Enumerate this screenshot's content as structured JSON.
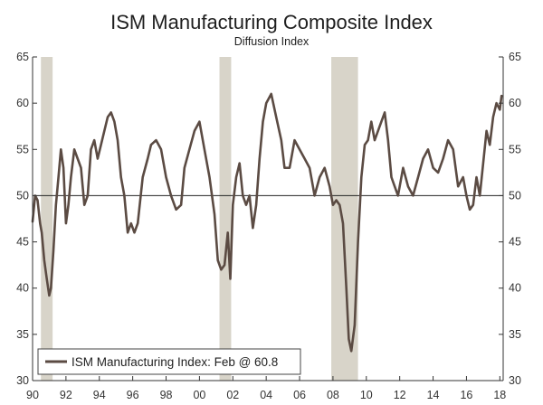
{
  "chart_data": {
    "type": "line",
    "title": "ISM Manufacturing Composite Index",
    "subtitle": "Diffusion Index",
    "xlabel": "",
    "ylabel": "",
    "ylim": [
      30,
      65
    ],
    "y_ticks": [
      30,
      35,
      40,
      45,
      50,
      55,
      60,
      65
    ],
    "x_range": [
      1990,
      2018.2
    ],
    "x_ticks": [
      {
        "value": 1990,
        "label": "90"
      },
      {
        "value": 1992,
        "label": "92"
      },
      {
        "value": 1994,
        "label": "94"
      },
      {
        "value": 1996,
        "label": "96"
      },
      {
        "value": 1998,
        "label": "98"
      },
      {
        "value": 2000,
        "label": "00"
      },
      {
        "value": 2002,
        "label": "02"
      },
      {
        "value": 2004,
        "label": "04"
      },
      {
        "value": 2006,
        "label": "06"
      },
      {
        "value": 2008,
        "label": "08"
      },
      {
        "value": 2010,
        "label": "10"
      },
      {
        "value": 2012,
        "label": "12"
      },
      {
        "value": 2014,
        "label": "14"
      },
      {
        "value": 2016,
        "label": "16"
      },
      {
        "value": 2018,
        "label": "18"
      }
    ],
    "reference_line": 50,
    "recessions": [
      {
        "start": 1990.5,
        "end": 1991.2
      },
      {
        "start": 2001.2,
        "end": 2001.9
      },
      {
        "start": 2007.9,
        "end": 2009.5
      }
    ],
    "legend": {
      "label": "ISM Manufacturing Index: Feb @ 60.8",
      "position": "bottom-left"
    },
    "colors": {
      "line": "#5b4b43",
      "recession": "#d8d4c9",
      "axis": "#333333"
    },
    "series": [
      {
        "name": "ISM Manufacturing Index: Feb @ 60.8",
        "x": [
          1990.0,
          1990.15,
          1990.3,
          1990.45,
          1990.55,
          1990.7,
          1990.85,
          1991.0,
          1991.1,
          1991.25,
          1991.4,
          1991.55,
          1991.7,
          1991.85,
          1992.0,
          1992.15,
          1992.3,
          1992.5,
          1992.7,
          1992.9,
          1993.1,
          1993.3,
          1993.5,
          1993.7,
          1993.9,
          1994.1,
          1994.3,
          1994.5,
          1994.7,
          1994.9,
          1995.1,
          1995.3,
          1995.5,
          1995.7,
          1995.9,
          1996.1,
          1996.3,
          1996.6,
          1996.9,
          1997.1,
          1997.4,
          1997.7,
          1998.0,
          1998.3,
          1998.6,
          1998.9,
          1999.1,
          1999.4,
          1999.7,
          2000.0,
          2000.3,
          2000.6,
          2000.9,
          2001.1,
          2001.3,
          2001.5,
          2001.7,
          2001.85,
          2002.0,
          2002.2,
          2002.4,
          2002.6,
          2002.8,
          2003.0,
          2003.2,
          2003.4,
          2003.6,
          2003.8,
          2004.0,
          2004.3,
          2004.6,
          2004.9,
          2005.1,
          2005.4,
          2005.7,
          2006.0,
          2006.3,
          2006.6,
          2006.9,
          2007.2,
          2007.5,
          2007.8,
          2008.0,
          2008.2,
          2008.4,
          2008.6,
          2008.8,
          2008.95,
          2009.1,
          2009.3,
          2009.5,
          2009.7,
          2009.9,
          2010.1,
          2010.3,
          2010.5,
          2010.7,
          2010.9,
          2011.1,
          2011.3,
          2011.5,
          2011.7,
          2011.9,
          2012.2,
          2012.5,
          2012.8,
          2013.1,
          2013.4,
          2013.7,
          2014.0,
          2014.3,
          2014.6,
          2014.9,
          2015.2,
          2015.5,
          2015.8,
          2016.0,
          2016.2,
          2016.4,
          2016.6,
          2016.8,
          2017.0,
          2017.2,
          2017.4,
          2017.6,
          2017.8,
          2018.0,
          2018.1
        ],
        "values": [
          47.2,
          50.0,
          49.5,
          47.0,
          46.0,
          43.0,
          41.0,
          39.2,
          40.0,
          44.0,
          49.0,
          52.0,
          55.0,
          53.0,
          47.0,
          49.0,
          52.0,
          55.0,
          54.0,
          53.0,
          49.0,
          50.0,
          55.0,
          56.0,
          54.0,
          55.5,
          57.0,
          58.5,
          59.0,
          58.0,
          56.0,
          52.0,
          50.0,
          46.0,
          47.0,
          46.0,
          47.0,
          52.0,
          54.0,
          55.5,
          56.0,
          55.0,
          52.0,
          50.0,
          48.5,
          49.0,
          53.0,
          55.0,
          57.0,
          58.0,
          55.0,
          52.0,
          48.0,
          43.0,
          42.0,
          42.5,
          46.0,
          41.0,
          49.0,
          52.0,
          53.5,
          50.0,
          49.0,
          50.0,
          46.5,
          49.0,
          54.0,
          58.0,
          60.0,
          61.0,
          58.5,
          56.0,
          53.0,
          53.0,
          56.0,
          55.0,
          54.0,
          53.0,
          50.0,
          52.0,
          53.0,
          51.0,
          49.0,
          49.5,
          49.0,
          47.0,
          40.0,
          34.5,
          33.2,
          36.0,
          45.0,
          52.0,
          55.5,
          56.0,
          58.0,
          56.0,
          57.0,
          58.0,
          59.0,
          56.0,
          52.0,
          51.0,
          50.0,
          53.0,
          51.0,
          50.0,
          52.0,
          54.0,
          55.0,
          53.0,
          52.5,
          54.0,
          56.0,
          55.0,
          51.0,
          52.0,
          50.0,
          48.5,
          49.0,
          52.0,
          50.0,
          53.5,
          57.0,
          55.5,
          58.5,
          60.0,
          59.3,
          60.8
        ]
      }
    ]
  }
}
